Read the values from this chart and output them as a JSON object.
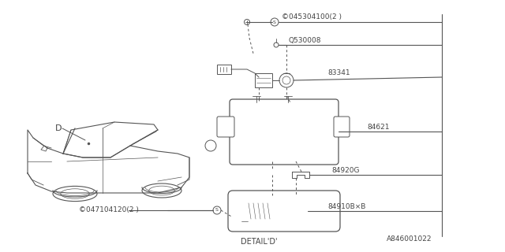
{
  "bg_color": "#ffffff",
  "lc": "#555555",
  "tc": "#444444",
  "fig_width": 6.4,
  "fig_height": 3.2,
  "dpi": 100,
  "parts": {
    "S045304100": "©045304100(2 )",
    "Q530008": "Q530008",
    "83341": "83341",
    "84621": "84621",
    "84920G": "84920G",
    "84910BxB": "84910B×B",
    "S047104120": "©047104120(2 )",
    "D_label": "D",
    "detail_d": "DETAIL’D’",
    "ref": "A846001022"
  }
}
